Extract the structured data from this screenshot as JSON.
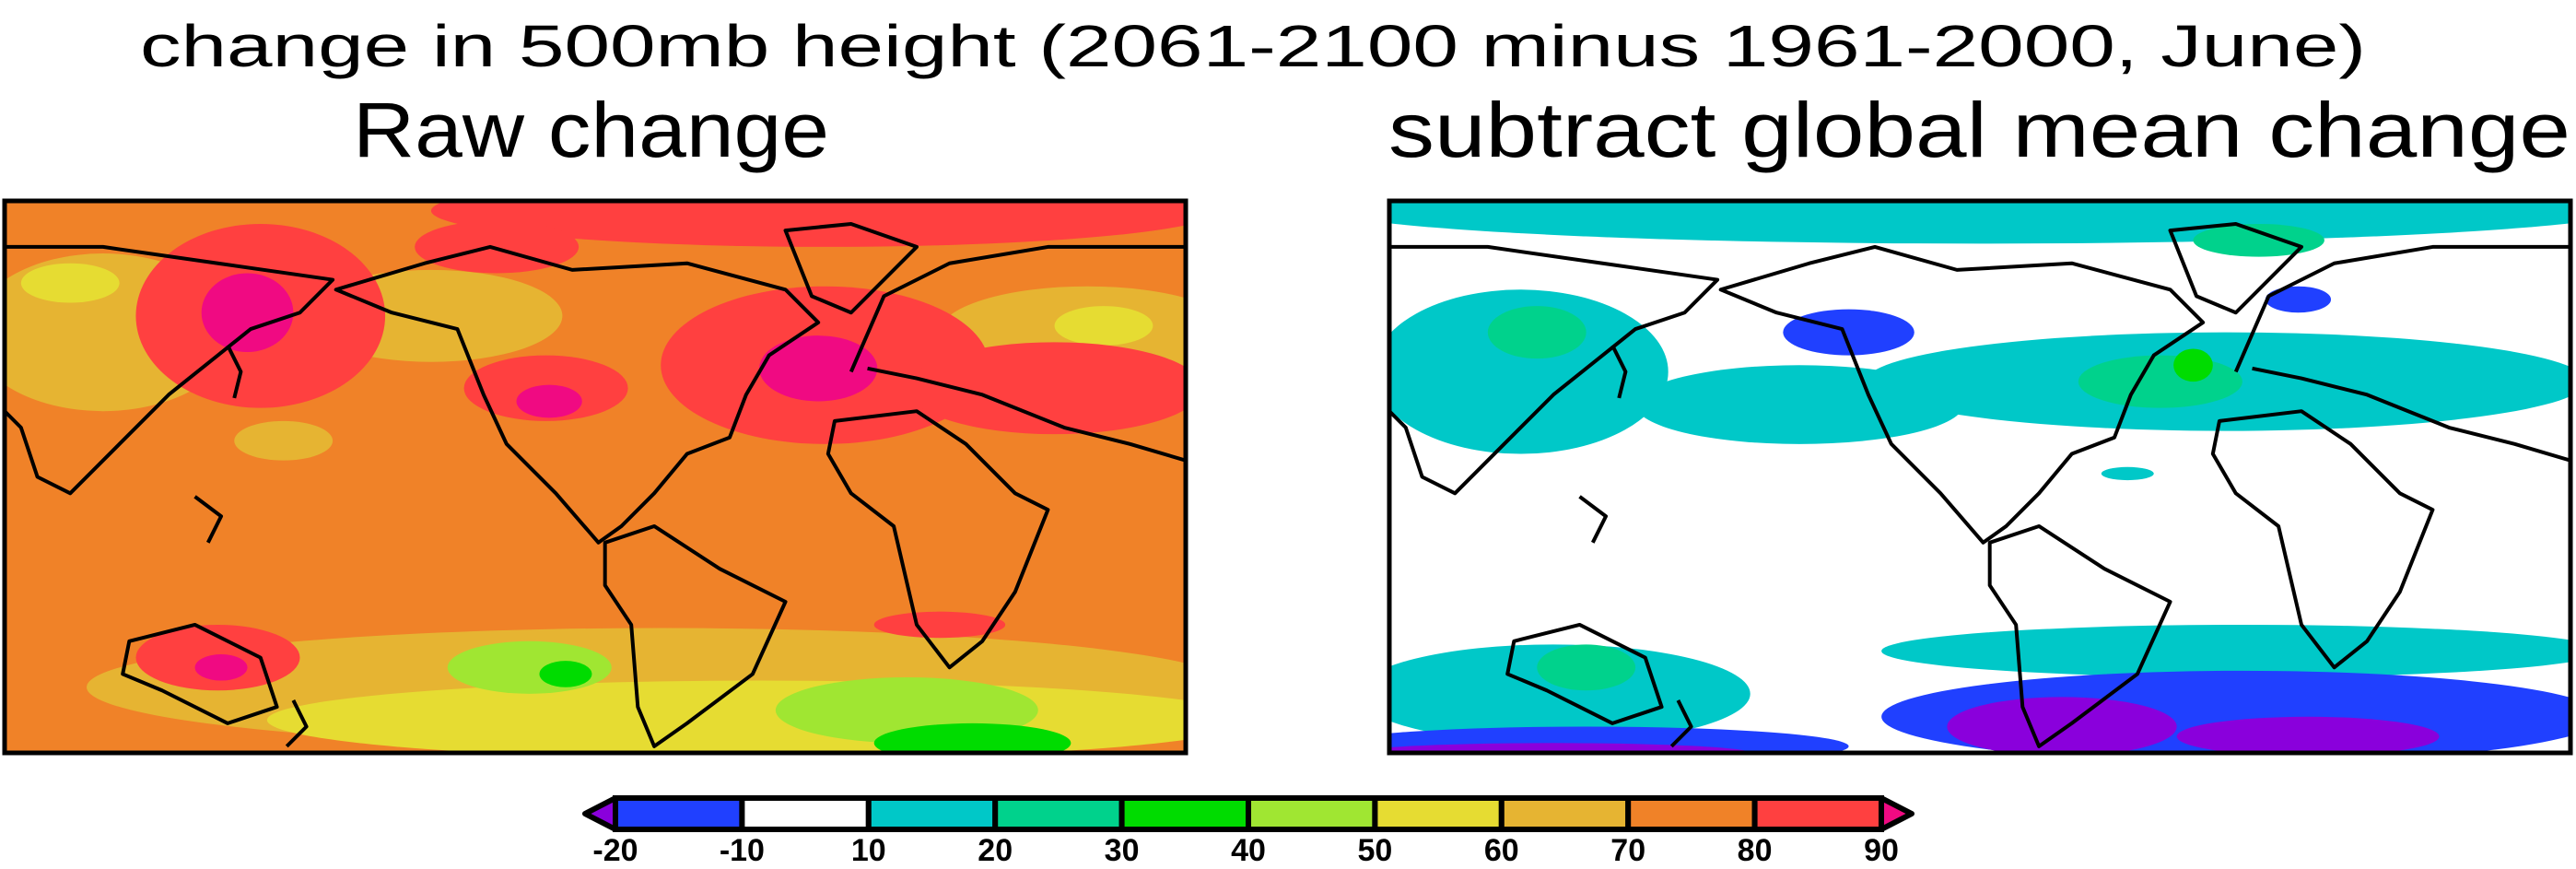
{
  "chart_data": {
    "type": "heatmap",
    "title": "change in 500mb height (2061-2100 minus 1961-2000, June)",
    "panels": [
      {
        "title": "Raw change",
        "background_level": "70-80"
      },
      {
        "title": "subtract global mean change",
        "background_level": "-10-10"
      }
    ],
    "colorbar": {
      "levels": [
        "-20",
        "-10",
        "10",
        "20",
        "30",
        "40",
        "50",
        "60",
        "70",
        "80",
        "90"
      ],
      "below_color": "#8A00DC",
      "above_color": "#F00A82",
      "colors": [
        "#2040FF",
        "#FFFFFF",
        "#00C8C8",
        "#00D28C",
        "#00DC00",
        "#A0E632",
        "#E6DC32",
        "#E6B432",
        "#F08228",
        "#FF4040"
      ]
    }
  }
}
